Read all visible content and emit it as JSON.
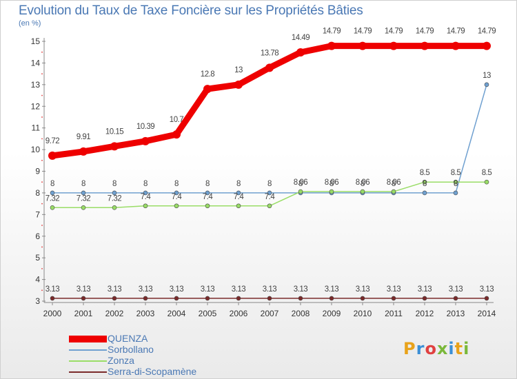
{
  "header": {
    "title": "Evolution du Taux de Taxe Foncière sur les Propriétés Bâties",
    "unit": "(en %)"
  },
  "logo": {
    "text": "Proxiti",
    "colors": [
      "#e8a21a",
      "#3b8fd6",
      "#e04040",
      "#7ab83a",
      "#3b8fd6",
      "#e8a21a",
      "#7ab83a"
    ]
  },
  "chart_data": {
    "type": "line",
    "title": "Evolution du Taux de Taxe Foncière sur les Propriétés Bâties",
    "ylabel": "(en %)",
    "xlabel": "",
    "x": [
      "2000",
      "2001",
      "2002",
      "2003",
      "2004",
      "2005",
      "2006",
      "2007",
      "2008",
      "2009",
      "2010",
      "2011",
      "2012",
      "2013",
      "2014"
    ],
    "ylim": [
      3,
      15
    ],
    "yticks": [
      3,
      4,
      5,
      6,
      7,
      8,
      9,
      10,
      11,
      12,
      13,
      14,
      15
    ],
    "grid": false,
    "legend_position": "bottom-left",
    "series": [
      {
        "name": "QUENZA",
        "color": "#ee0000",
        "values": [
          9.72,
          9.91,
          10.15,
          10.39,
          10.7,
          12.8,
          13,
          13.78,
          14.49,
          14.79,
          14.79,
          14.79,
          14.79,
          14.79,
          14.79
        ],
        "labels": [
          "9.72",
          "9.91",
          "10.15",
          "10.39",
          "10.7",
          "12.8",
          "13",
          "13.78",
          "14.49",
          "14.79",
          "14.79",
          "14.79",
          "14.79",
          "14.79",
          "14.79"
        ]
      },
      {
        "name": "Sorbollano",
        "color": "#6fa0d0",
        "values": [
          8,
          8,
          8,
          8,
          8,
          8,
          8,
          8,
          8,
          8,
          8,
          8,
          8,
          8,
          13
        ],
        "labels": [
          "8",
          "8",
          "8",
          "8",
          "8",
          "8",
          "8",
          "8",
          "8",
          "8",
          "8",
          "8",
          "8",
          "8",
          "13"
        ]
      },
      {
        "name": "Zonza",
        "color": "#99dd66",
        "values": [
          7.32,
          7.32,
          7.32,
          7.4,
          7.4,
          7.4,
          7.4,
          7.4,
          8.06,
          8.06,
          8.06,
          8.06,
          8.5,
          8.5,
          8.5
        ],
        "labels": [
          "7.32",
          "7.32",
          "7.32",
          "7.4",
          "7.4",
          "7.4",
          "7.4",
          "7.4",
          "8.06",
          "8.06",
          "8.06",
          "8.06",
          "8.5",
          "8.5",
          "8.5"
        ]
      },
      {
        "name": "Serra-di-Scopamène",
        "color": "#7a2a2a",
        "values": [
          3.13,
          3.13,
          3.13,
          3.13,
          3.13,
          3.13,
          3.13,
          3.13,
          3.13,
          3.13,
          3.13,
          3.13,
          3.13,
          3.13,
          3.13
        ],
        "labels": [
          "3.13",
          "3.13",
          "3.13",
          "3.13",
          "3.13",
          "3.13",
          "3.13",
          "3.13",
          "3.13",
          "3.13",
          "3.13",
          "3.13",
          "3.13",
          "3.13",
          "3.13"
        ]
      }
    ]
  }
}
